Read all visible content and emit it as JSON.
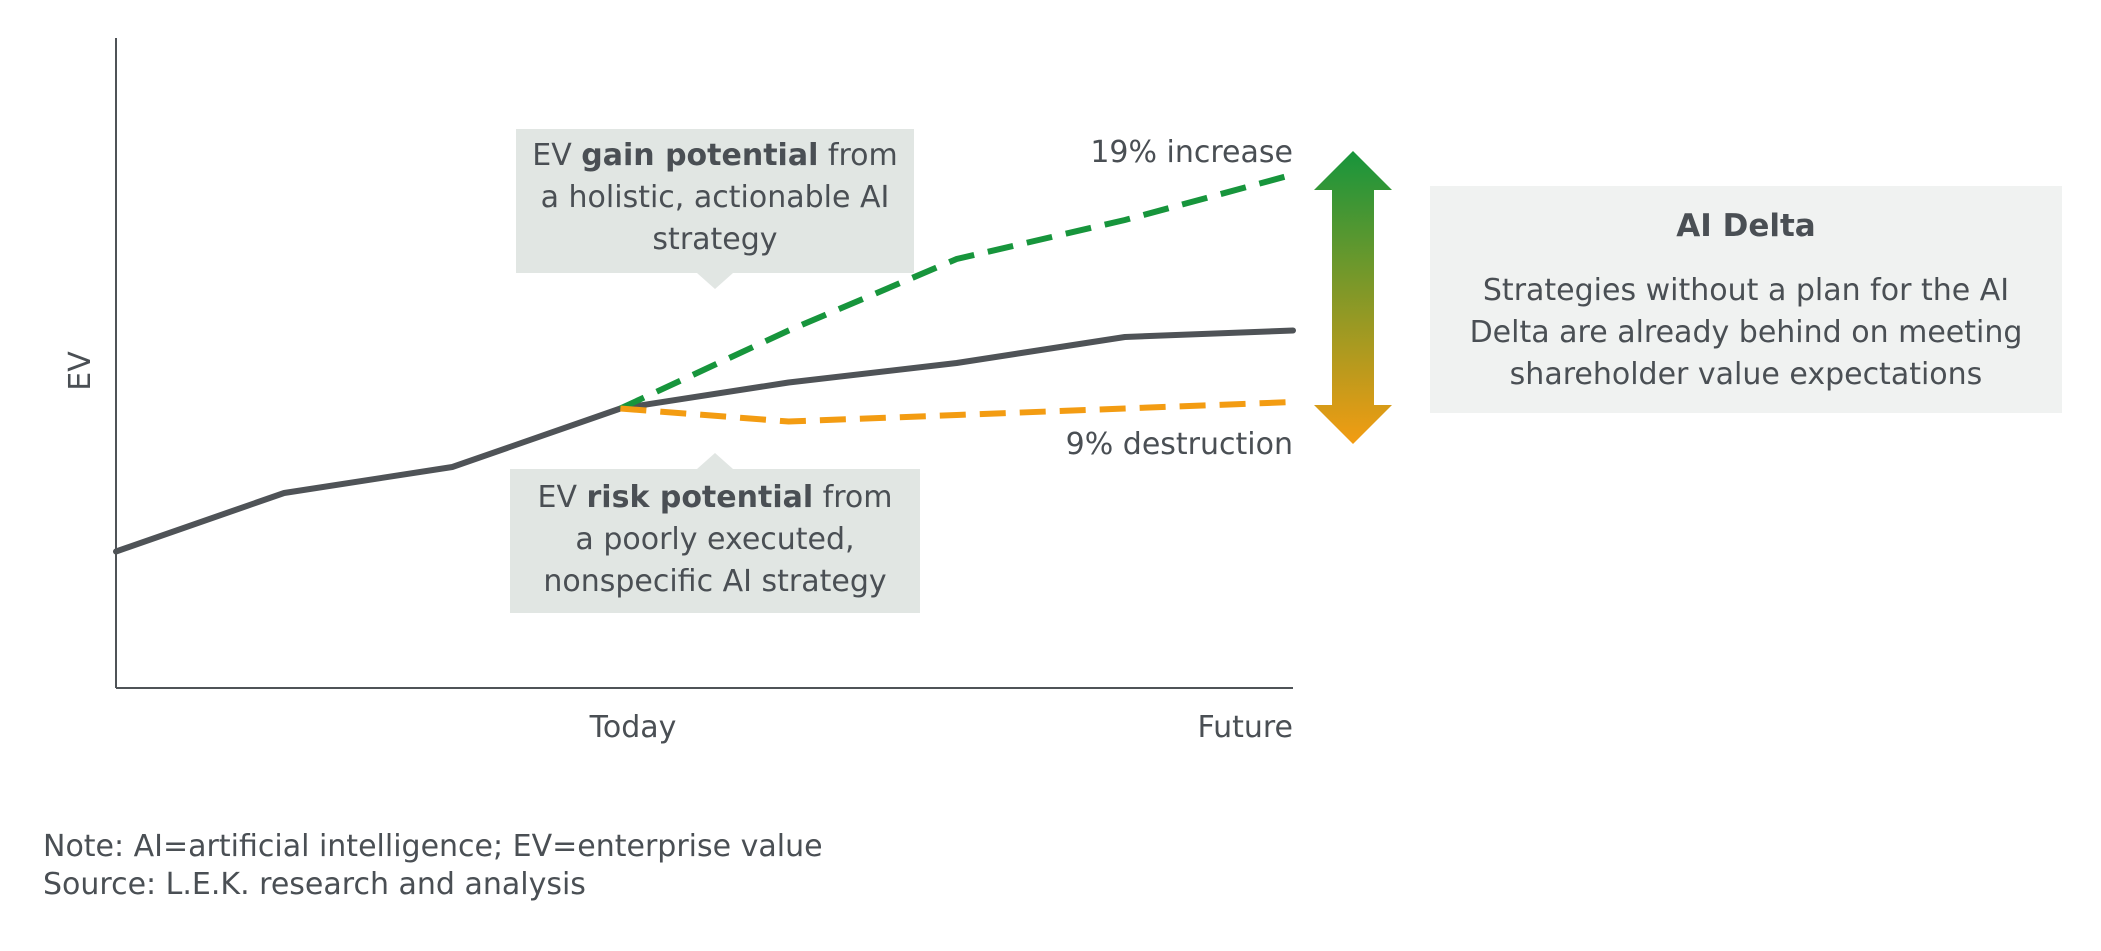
{
  "chart_data": {
    "type": "line",
    "ylabel": "EV",
    "xlabel": "",
    "x_tick_labels": [
      "Today",
      "Future"
    ],
    "xlim": [
      0,
      7
    ],
    "ylim": [
      0,
      10
    ],
    "axis_display": "no numeric ticks; x ticks labeled Today and Future only",
    "grid": false,
    "series": [
      {
        "name": "",
        "style": "solid",
        "color": "#4f5357",
        "x": [
          0,
          1,
          2,
          3,
          4,
          5,
          6,
          7
        ],
        "y": [
          2.1,
          3.0,
          3.4,
          4.3,
          4.7,
          5.0,
          5.4,
          5.5
        ]
      },
      {
        "name": "",
        "style": "dashed",
        "color": "#17953c",
        "x": [
          3,
          4,
          5,
          6,
          7
        ],
        "y": [
          4.3,
          5.5,
          6.6,
          7.2,
          7.9
        ]
      },
      {
        "name": "",
        "style": "dashed",
        "color": "#f39c12",
        "x": [
          3,
          4,
          5,
          6,
          7
        ],
        "y": [
          4.3,
          4.1,
          4.2,
          4.3,
          4.4
        ]
      }
    ],
    "end_labels": {
      "increase": "19% increase",
      "destruction": "9% destruction"
    },
    "arrow_colors": {
      "top": "#17953c",
      "bottom": "#f39c12"
    }
  },
  "callouts": {
    "gain": {
      "prefix": "EV ",
      "bold": "gain potential",
      "rest": " from a holistic, actionable AI strategy"
    },
    "risk": {
      "prefix": "EV ",
      "bold": "risk potential",
      "rest": " from a poorly executed, nonspecific AI strategy"
    }
  },
  "delta": {
    "title": "AI Delta",
    "body": "Strategies without a plan for the AI Delta are already behind on meeting shareholder value expectations"
  },
  "footer": {
    "note": "Note: AI=artificial intelligence; EV=enterprise value",
    "source": "Source: L.E.K. research and analysis"
  }
}
